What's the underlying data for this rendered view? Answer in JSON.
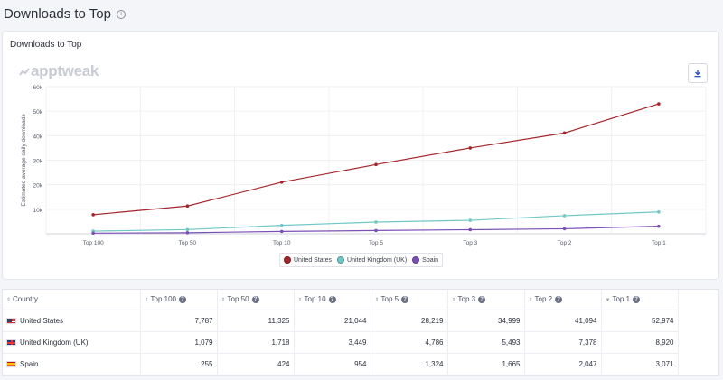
{
  "page": {
    "title": "Downloads to Top"
  },
  "card": {
    "title": "Downloads to Top",
    "brand": "apptweak"
  },
  "chart_data": {
    "type": "line",
    "categories": [
      "Top 100",
      "Top 50",
      "Top 10",
      "Top 5",
      "Top 3",
      "Top 2",
      "Top 1"
    ],
    "ylabel": "Estimated average daily downloads",
    "ylim": [
      0,
      60000
    ],
    "yticks": [
      0,
      10000,
      20000,
      30000,
      40000,
      50000,
      60000
    ],
    "ytick_labels": [
      "",
      "10k",
      "20k",
      "30k",
      "40k",
      "50k",
      "60k"
    ],
    "grid": true,
    "legend_position": "bottom",
    "series": [
      {
        "name": "United States",
        "color": "#a4262c",
        "values": [
          7787,
          11325,
          21044,
          28219,
          34999,
          41094,
          52974
        ]
      },
      {
        "name": "United Kingdom (UK)",
        "color": "#6fc8c6",
        "values": [
          1079,
          1718,
          3449,
          4786,
          5493,
          7378,
          8920
        ]
      },
      {
        "name": "Spain",
        "color": "#7c4fb8",
        "values": [
          255,
          424,
          954,
          1324,
          1665,
          2047,
          3071
        ]
      }
    ]
  },
  "table": {
    "headers": [
      "Country",
      "Top 100",
      "Top 50",
      "Top 10",
      "Top 5",
      "Top 3",
      "Top 2",
      "Top 1"
    ],
    "rows": [
      {
        "country": "United States",
        "flag": "us",
        "values": [
          "7,787",
          "11,325",
          "21,044",
          "28,219",
          "34,999",
          "41,094",
          "52,974"
        ]
      },
      {
        "country": "United Kingdom (UK)",
        "flag": "uk",
        "values": [
          "1,079",
          "1,718",
          "3,449",
          "4,786",
          "5,493",
          "7,378",
          "8,920"
        ]
      },
      {
        "country": "Spain",
        "flag": "es",
        "values": [
          "255",
          "424",
          "954",
          "1,324",
          "1,665",
          "2,047",
          "3,071"
        ]
      }
    ]
  }
}
